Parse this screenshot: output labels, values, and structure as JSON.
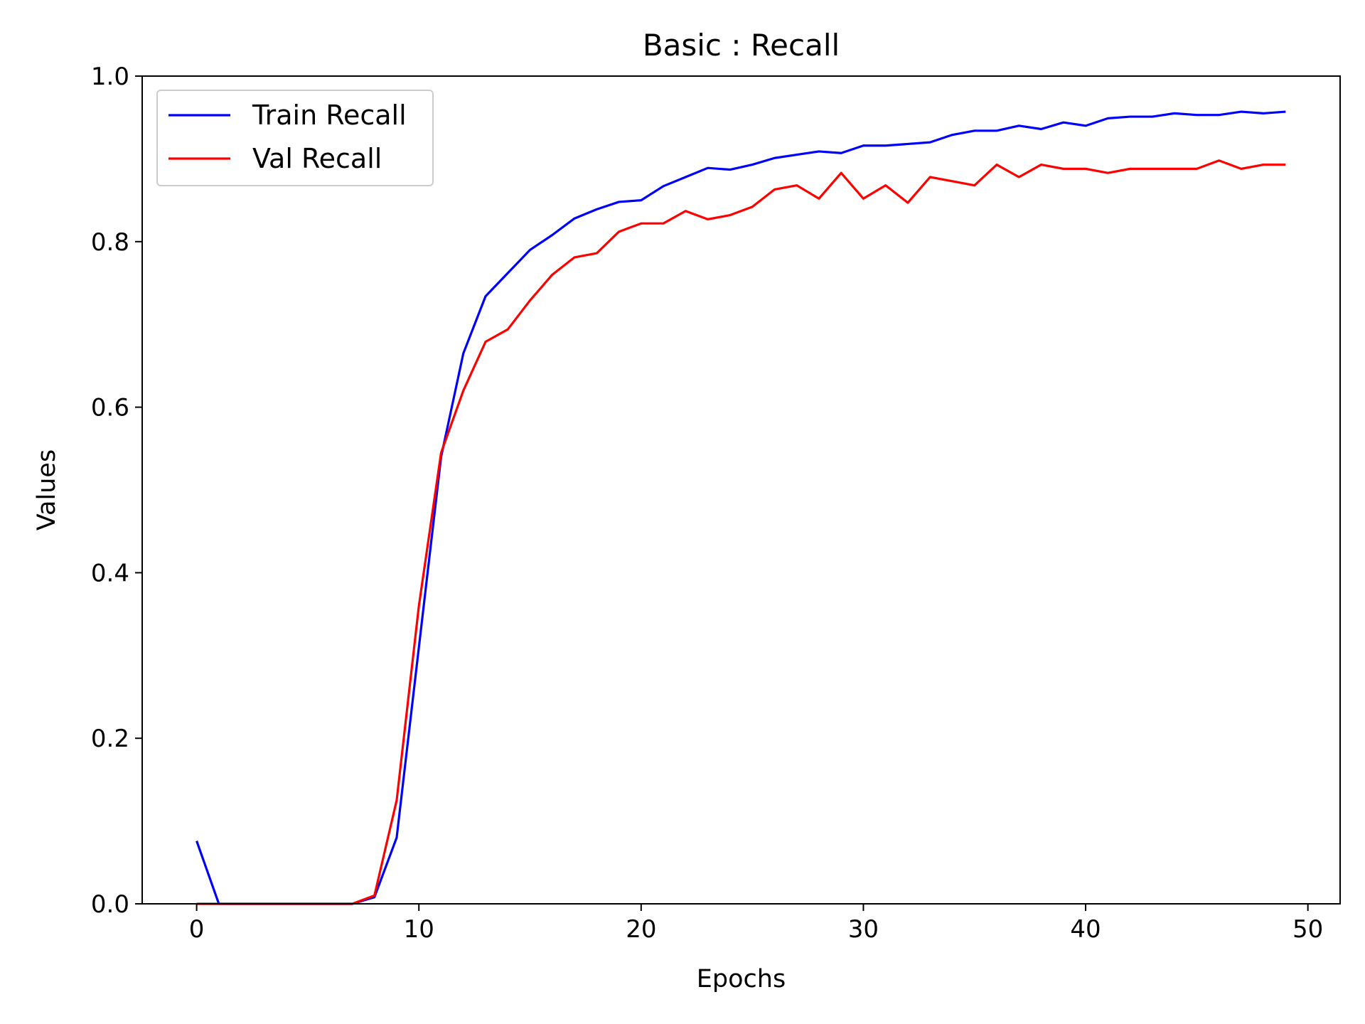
{
  "chart_data": {
    "type": "line",
    "title": "Basic : Recall",
    "xlabel": "Epochs",
    "ylabel": "Values",
    "xlim": [
      -2.45,
      51.45
    ],
    "ylim": [
      0.0,
      1.0
    ],
    "xticks": [
      0,
      10,
      20,
      30,
      40,
      50
    ],
    "yticks": [
      0.0,
      0.2,
      0.4,
      0.6,
      0.8,
      1.0
    ],
    "xtick_labels": [
      "0",
      "10",
      "20",
      "30",
      "40",
      "50"
    ],
    "ytick_labels": [
      "0.0",
      "0.2",
      "0.4",
      "0.6",
      "0.8",
      "1.0"
    ],
    "grid": false,
    "legend_position": "upper-left",
    "x": [
      0,
      1,
      2,
      3,
      4,
      5,
      6,
      7,
      8,
      9,
      10,
      11,
      12,
      13,
      14,
      15,
      16,
      17,
      18,
      19,
      20,
      21,
      22,
      23,
      24,
      25,
      26,
      27,
      28,
      29,
      30,
      31,
      32,
      33,
      34,
      35,
      36,
      37,
      38,
      39,
      40,
      41,
      42,
      43,
      44,
      45,
      46,
      47,
      48,
      49
    ],
    "series": [
      {
        "name": "Train Recall",
        "color": "#0000ff",
        "values": [
          0.076,
          0.0,
          0.0,
          0.0,
          0.0,
          0.0,
          0.0,
          0.0,
          0.008,
          0.08,
          0.31,
          0.54,
          0.665,
          0.734,
          0.762,
          0.79,
          0.808,
          0.828,
          0.839,
          0.848,
          0.85,
          0.867,
          0.878,
          0.889,
          0.887,
          0.893,
          0.901,
          0.905,
          0.909,
          0.907,
          0.916,
          0.916,
          0.918,
          0.92,
          0.929,
          0.934,
          0.934,
          0.94,
          0.936,
          0.944,
          0.94,
          0.949,
          0.951,
          0.951,
          0.955,
          0.953,
          0.953,
          0.957,
          0.955,
          0.957
        ]
      },
      {
        "name": "Val Recall",
        "color": "#ff0000",
        "values": [
          0.0,
          0.0,
          0.0,
          0.0,
          0.0,
          0.0,
          0.0,
          0.0,
          0.01,
          0.125,
          0.36,
          0.545,
          0.62,
          0.679,
          0.694,
          0.729,
          0.76,
          0.781,
          0.786,
          0.812,
          0.822,
          0.822,
          0.837,
          0.827,
          0.832,
          0.842,
          0.863,
          0.868,
          0.852,
          0.883,
          0.852,
          0.868,
          0.847,
          0.878,
          0.873,
          0.868,
          0.893,
          0.878,
          0.893,
          0.888,
          0.888,
          0.883,
          0.888,
          0.888,
          0.888,
          0.888,
          0.898,
          0.888,
          0.893,
          0.893
        ]
      }
    ]
  }
}
